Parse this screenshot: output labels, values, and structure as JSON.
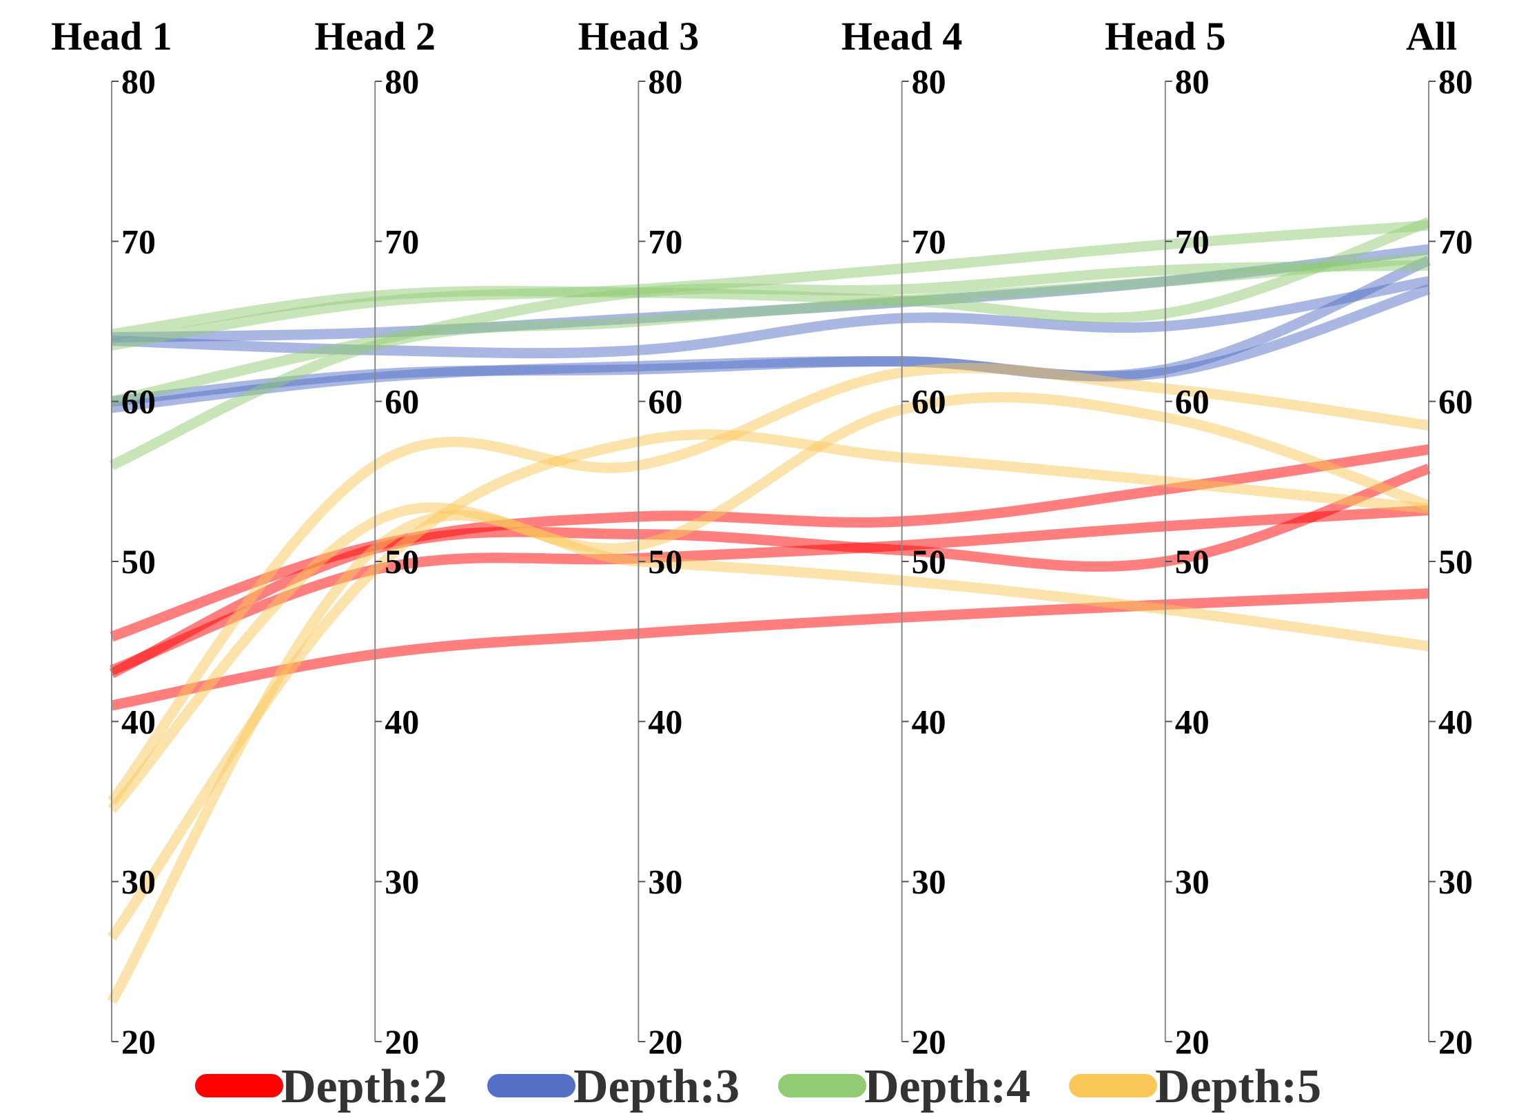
{
  "chart_data": {
    "type": "parallel-coordinates",
    "axes": [
      "Head 1",
      "Head 2",
      "Head 3",
      "Head 4",
      "Head 5",
      "All"
    ],
    "ylim": [
      20,
      80
    ],
    "ticks": [
      20,
      30,
      40,
      50,
      60,
      70,
      80
    ],
    "legend": [
      {
        "name": "Depth:2",
        "color": "#ff0000"
      },
      {
        "name": "Depth:3",
        "color": "#5470c6"
      },
      {
        "name": "Depth:4",
        "color": "#91cc75"
      },
      {
        "name": "Depth:5",
        "color": "#fac858"
      }
    ],
    "series": [
      {
        "name": "Depth:2",
        "color": "#ff0000",
        "values": [
          45.3,
          51.0,
          52.8,
          52.5,
          54.5,
          57.0
        ]
      },
      {
        "name": "Depth:2",
        "color": "#ff0000",
        "values": [
          43.0,
          50.8,
          51.7,
          50.7,
          50.0,
          55.8
        ]
      },
      {
        "name": "Depth:2",
        "color": "#ff0000",
        "values": [
          43.2,
          49.5,
          50.2,
          51.0,
          52.2,
          53.2
        ]
      },
      {
        "name": "Depth:2",
        "color": "#ff0000",
        "values": [
          41.0,
          44.2,
          45.5,
          46.5,
          47.3,
          48.0
        ]
      },
      {
        "name": "Depth:3",
        "color": "#5470c6",
        "values": [
          64.0,
          64.3,
          65.2,
          66.2,
          67.5,
          69.5
        ]
      },
      {
        "name": "Depth:3",
        "color": "#5470c6",
        "values": [
          63.8,
          63.2,
          63.2,
          65.2,
          64.7,
          67.5
        ]
      },
      {
        "name": "Depth:3",
        "color": "#5470c6",
        "values": [
          59.6,
          61.5,
          62.2,
          62.5,
          62.0,
          68.8
        ]
      },
      {
        "name": "Depth:3",
        "color": "#5470c6",
        "values": [
          60.0,
          61.7,
          62.0,
          62.5,
          61.8,
          67.0
        ]
      },
      {
        "name": "Depth:4",
        "color": "#91cc75",
        "values": [
          64.2,
          66.6,
          66.8,
          66.3,
          65.5,
          71.2
        ]
      },
      {
        "name": "Depth:4",
        "color": "#91cc75",
        "values": [
          63.5,
          66.2,
          67.0,
          68.3,
          69.8,
          71.0
        ]
      },
      {
        "name": "Depth:4",
        "color": "#91cc75",
        "values": [
          60.0,
          63.8,
          66.8,
          67.0,
          68.2,
          68.5
        ]
      },
      {
        "name": "Depth:4",
        "color": "#91cc75",
        "values": [
          56.0,
          63.5,
          65.0,
          66.3,
          67.5,
          69.0
        ]
      },
      {
        "name": "Depth:5",
        "color": "#fac858",
        "values": [
          35.0,
          56.0,
          56.0,
          61.8,
          60.8,
          58.5
        ]
      },
      {
        "name": "Depth:5",
        "color": "#fac858",
        "values": [
          34.5,
          52.5,
          51.0,
          59.5,
          59.0,
          53.5
        ]
      },
      {
        "name": "Depth:5",
        "color": "#fac858",
        "values": [
          26.5,
          49.5,
          57.5,
          56.5,
          55.0,
          53.3
        ]
      },
      {
        "name": "Depth:5",
        "color": "#fac858",
        "values": [
          22.5,
          50.8,
          50.0,
          48.8,
          47.0,
          44.7
        ]
      }
    ]
  }
}
